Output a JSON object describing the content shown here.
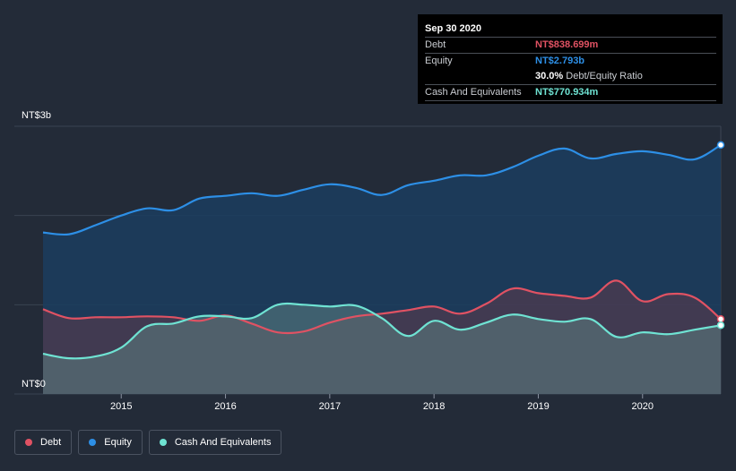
{
  "colors": {
    "debt": "#e05263",
    "equity": "#2d8fe6",
    "cash": "#6fe3d3",
    "background": "#232b38",
    "grid": "#3a4352"
  },
  "tooltip": {
    "date": "Sep 30 2020",
    "debt_label": "Debt",
    "debt_value": "NT$838.699m",
    "equity_label": "Equity",
    "equity_value": "NT$2.793b",
    "ratio_value": "30.0%",
    "ratio_label": "Debt/Equity Ratio",
    "cash_label": "Cash And Equivalents",
    "cash_value": "NT$770.934m"
  },
  "legend": {
    "debt": "Debt",
    "equity": "Equity",
    "cash": "Cash And Equivalents"
  },
  "chart_data": {
    "type": "area",
    "title": "",
    "xlabel": "",
    "ylabel": "",
    "y_unit": "NT$ billions",
    "ylim": [
      0,
      3
    ],
    "y_tick_labels": [
      {
        "value": 3,
        "label": "NT$3b"
      },
      {
        "value": 0,
        "label": "NT$0"
      }
    ],
    "xlim": [
      2014.25,
      2020.75
    ],
    "x_ticks": [
      2015,
      2016,
      2017,
      2018,
      2019,
      2020
    ],
    "x_tick_labels": [
      "2015",
      "2016",
      "2017",
      "2018",
      "2019",
      "2020"
    ],
    "series": [
      {
        "name": "Equity",
        "x": [
          2014.25,
          2014.5,
          2014.75,
          2015.0,
          2015.25,
          2015.5,
          2015.75,
          2016.0,
          2016.25,
          2016.5,
          2016.75,
          2017.0,
          2017.25,
          2017.5,
          2017.75,
          2018.0,
          2018.25,
          2018.5,
          2018.75,
          2019.0,
          2019.25,
          2019.5,
          2019.75,
          2020.0,
          2020.25,
          2020.5,
          2020.75
        ],
        "values": [
          1.81,
          1.79,
          1.89,
          2.0,
          2.08,
          2.06,
          2.19,
          2.22,
          2.25,
          2.22,
          2.29,
          2.35,
          2.31,
          2.23,
          2.34,
          2.39,
          2.45,
          2.45,
          2.54,
          2.67,
          2.75,
          2.64,
          2.69,
          2.72,
          2.68,
          2.63,
          2.79
        ]
      },
      {
        "name": "Debt",
        "x": [
          2014.25,
          2014.5,
          2014.75,
          2015.0,
          2015.25,
          2015.5,
          2015.75,
          2016.0,
          2016.25,
          2016.5,
          2016.75,
          2017.0,
          2017.25,
          2017.5,
          2017.75,
          2018.0,
          2018.25,
          2018.5,
          2018.75,
          2019.0,
          2019.25,
          2019.5,
          2019.75,
          2020.0,
          2020.25,
          2020.5,
          2020.75
        ],
        "values": [
          0.95,
          0.85,
          0.86,
          0.86,
          0.87,
          0.86,
          0.82,
          0.88,
          0.79,
          0.69,
          0.7,
          0.8,
          0.87,
          0.9,
          0.94,
          0.98,
          0.9,
          1.01,
          1.18,
          1.13,
          1.1,
          1.08,
          1.27,
          1.04,
          1.12,
          1.08,
          0.84
        ]
      },
      {
        "name": "Cash And Equivalents",
        "x": [
          2014.25,
          2014.5,
          2014.75,
          2015.0,
          2015.25,
          2015.5,
          2015.75,
          2016.0,
          2016.25,
          2016.5,
          2016.75,
          2017.0,
          2017.25,
          2017.5,
          2017.75,
          2018.0,
          2018.25,
          2018.5,
          2018.75,
          2019.0,
          2019.25,
          2019.5,
          2019.75,
          2020.0,
          2020.25,
          2020.5,
          2020.75
        ],
        "values": [
          0.45,
          0.4,
          0.42,
          0.52,
          0.76,
          0.79,
          0.87,
          0.87,
          0.85,
          1.0,
          1.0,
          0.98,
          0.99,
          0.85,
          0.65,
          0.82,
          0.72,
          0.8,
          0.89,
          0.84,
          0.81,
          0.84,
          0.64,
          0.69,
          0.67,
          0.72,
          0.77
        ]
      }
    ]
  }
}
